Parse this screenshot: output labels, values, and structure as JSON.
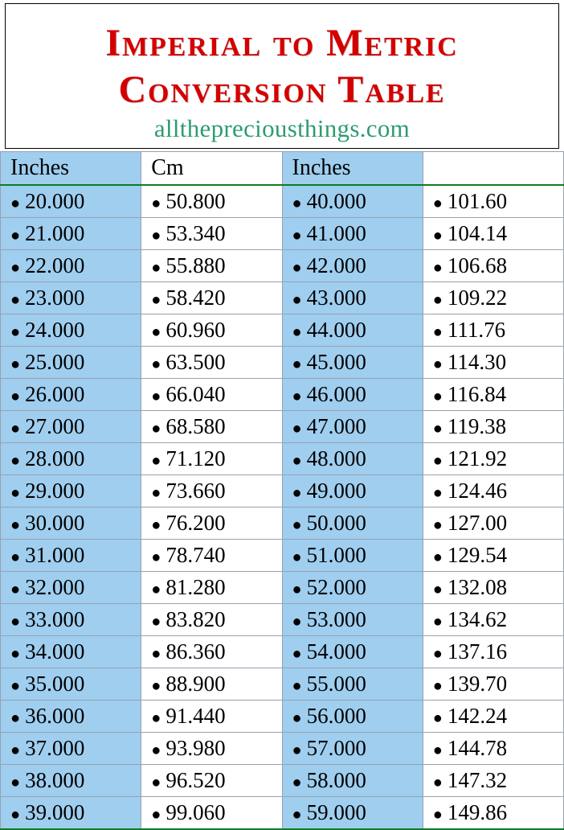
{
  "title": "Imperial to Metric Conversion Table",
  "subtitle": "allthepreciousthings.com",
  "colors": {
    "title_color": "#d40000",
    "subtitle_color": "#2d9c6f",
    "col_blue_bg": "#9fceef",
    "col_white_bg": "#ffffff",
    "cell_border": "#9aa0b2",
    "header_rule": "#0a7d24",
    "text_color": "#000000"
  },
  "typography": {
    "title_fontsize": 48,
    "subtitle_fontsize": 31,
    "header_fontsize": 28,
    "cell_fontsize": 27,
    "title_weight": "bold",
    "title_variant": "small-caps"
  },
  "table": {
    "columns": [
      {
        "label": "Inches",
        "bg": "blue",
        "align": "left"
      },
      {
        "label": "Cm",
        "bg": "white",
        "align": "left"
      },
      {
        "label": "Inches",
        "bg": "blue",
        "align": "left"
      },
      {
        "label": "",
        "bg": "white",
        "align": "left"
      }
    ],
    "bullet_char": "●",
    "rows": [
      [
        "20.000",
        "50.800",
        "40.000",
        "101.60"
      ],
      [
        "21.000",
        "53.340",
        "41.000",
        "104.14"
      ],
      [
        "22.000",
        "55.880",
        "42.000",
        "106.68"
      ],
      [
        "23.000",
        "58.420",
        "43.000",
        "109.22"
      ],
      [
        "24.000",
        "60.960",
        "44.000",
        "111.76"
      ],
      [
        "25.000",
        "63.500",
        "45.000",
        "114.30"
      ],
      [
        "26.000",
        "66.040",
        "46.000",
        "116.84"
      ],
      [
        "27.000",
        "68.580",
        "47.000",
        "119.38"
      ],
      [
        "28.000",
        "71.120",
        "48.000",
        "121.92"
      ],
      [
        "29.000",
        "73.660",
        "49.000",
        "124.46"
      ],
      [
        "30.000",
        "76.200",
        "50.000",
        "127.00"
      ],
      [
        "31.000",
        "78.740",
        "51.000",
        "129.54"
      ],
      [
        "32.000",
        "81.280",
        "52.000",
        "132.08"
      ],
      [
        "33.000",
        "83.820",
        "53.000",
        "134.62"
      ],
      [
        "34.000",
        "86.360",
        "54.000",
        "137.16"
      ],
      [
        "35.000",
        "88.900",
        "55.000",
        "139.70"
      ],
      [
        "36.000",
        "91.440",
        "56.000",
        "142.24"
      ],
      [
        "37.000",
        "93.980",
        "57.000",
        "144.78"
      ],
      [
        "38.000",
        "96.520",
        "58.000",
        "147.32"
      ],
      [
        "39.000",
        "99.060",
        "59.000",
        "149.86"
      ]
    ]
  }
}
